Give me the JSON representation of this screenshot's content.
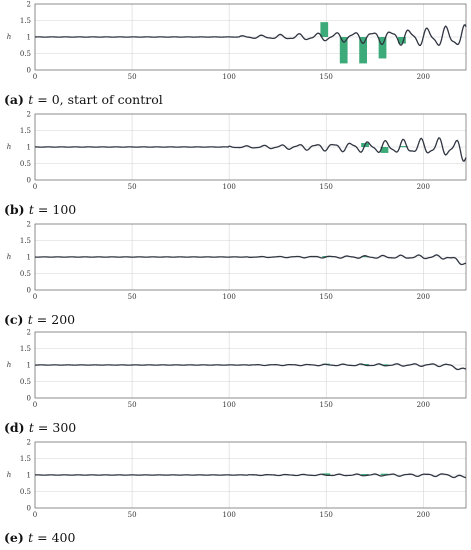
{
  "chart_data": [
    {
      "type": "line",
      "caption": {
        "tag": "(a)",
        "var": "t",
        "rest": " = 0, start of control"
      },
      "ylabel": "h",
      "xlim": [
        0,
        222
      ],
      "ylim": [
        0,
        2
      ],
      "xticks": [
        0,
        50,
        100,
        150,
        200
      ],
      "yticks": [
        0,
        0.5,
        1,
        1.5,
        2
      ],
      "grid": true,
      "series": [
        {
          "values_description_free": true,
          "wave": {
            "onset": 105,
            "amp_start": 0.03,
            "amp_end": 0.28,
            "period": 9.5,
            "mean": 1.0,
            "end_dip": 0.0
          }
        }
      ],
      "actuators": [
        {
          "x": 149,
          "value": 0.45
        },
        {
          "x": 159,
          "value": -0.8
        },
        {
          "x": 169,
          "value": -0.8
        },
        {
          "x": 179,
          "value": -0.65
        },
        {
          "x": 189,
          "value": -0.2
        }
      ]
    },
    {
      "type": "line",
      "caption": {
        "tag": "(b)",
        "var": "t",
        "rest": " = 100"
      },
      "ylabel": "h",
      "xlim": [
        0,
        222
      ],
      "ylim": [
        0,
        2
      ],
      "xticks": [
        0,
        50,
        100,
        150,
        200
      ],
      "yticks": [
        0,
        0.5,
        1,
        1.5,
        2
      ],
      "grid": true,
      "series": [
        {
          "wave": {
            "onset": 100,
            "amp_start": 0.02,
            "amp_end": 0.25,
            "period": 9.0,
            "mean": 1.0,
            "end_dip": -0.15
          }
        }
      ],
      "actuators": [
        {
          "x": 170,
          "value": 0.12
        },
        {
          "x": 180,
          "value": -0.18
        },
        {
          "x": 190,
          "value": 0.03
        }
      ]
    },
    {
      "type": "line",
      "caption": {
        "tag": "(c)",
        "var": "t",
        "rest": " = 200"
      },
      "ylabel": "h",
      "xlim": [
        0,
        222
      ],
      "ylim": [
        0,
        2
      ],
      "xticks": [
        0,
        50,
        100,
        150,
        200
      ],
      "yticks": [
        0,
        0.5,
        1,
        1.5,
        2
      ],
      "grid": true,
      "series": [
        {
          "wave": {
            "onset": 110,
            "amp_start": 0.01,
            "amp_end": 0.06,
            "period": 9.0,
            "mean": 1.0,
            "end_dip": -0.2
          }
        }
      ],
      "actuators": [
        {
          "x": 150,
          "value": 0.03
        },
        {
          "x": 170,
          "value": 0.03
        }
      ]
    },
    {
      "type": "line",
      "caption": {
        "tag": "(d)",
        "var": "t",
        "rest": " = 300"
      },
      "ylabel": "h",
      "xlim": [
        0,
        222
      ],
      "ylim": [
        0,
        2
      ],
      "xticks": [
        0,
        50,
        100,
        150,
        200
      ],
      "yticks": [
        0,
        0.5,
        1,
        1.5,
        2
      ],
      "grid": true,
      "series": [
        {
          "wave": {
            "onset": 110,
            "amp_start": 0.01,
            "amp_end": 0.04,
            "period": 9.0,
            "mean": 1.0,
            "end_dip": -0.15
          }
        }
      ],
      "actuators": [
        {
          "x": 150,
          "value": 0.04
        },
        {
          "x": 170,
          "value": 0.03
        },
        {
          "x": 180,
          "value": 0.02
        }
      ]
    },
    {
      "type": "line",
      "caption": {
        "tag": "(e)",
        "var": "t",
        "rest": " = 400"
      },
      "ylabel": "h",
      "xlim": [
        0,
        222
      ],
      "ylim": [
        0,
        2
      ],
      "xticks": [
        0,
        50,
        100,
        150,
        200
      ],
      "yticks": [
        0,
        0.5,
        1,
        1.5,
        2
      ],
      "grid": true,
      "series": [
        {
          "wave": {
            "onset": 110,
            "amp_start": 0.01,
            "amp_end": 0.04,
            "period": 9.0,
            "mean": 1.0,
            "end_dip": -0.08
          }
        }
      ],
      "actuators": [
        {
          "x": 150,
          "value": 0.05
        },
        {
          "x": 170,
          "value": 0.03
        },
        {
          "x": 180,
          "value": 0.04
        }
      ]
    }
  ],
  "colors": {
    "line": "#2f3541",
    "actuator": "#3daa7a",
    "grid": "#d4d4d4",
    "axis": "#666666"
  }
}
